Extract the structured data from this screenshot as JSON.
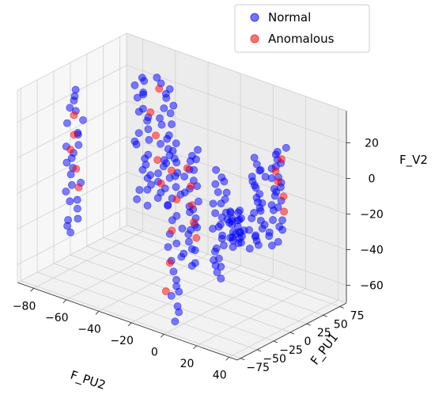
{
  "chart_data": {
    "type": "scatter",
    "projection": "3d",
    "axes": {
      "x": {
        "label": "F_PU2",
        "range": [
          -90,
          45
        ],
        "ticks": [
          -80,
          -60,
          -40,
          -20,
          0,
          20,
          40
        ]
      },
      "y": {
        "label": "F_PU1",
        "range": [
          -80,
          85
        ],
        "ticks": [
          -75,
          -50,
          -25,
          0,
          25,
          50,
          75
        ]
      },
      "z": {
        "label": "F_V2",
        "range": [
          -70,
          38
        ],
        "ticks": [
          -60,
          -40,
          -20,
          0,
          20
        ]
      }
    },
    "grid": true,
    "legend": {
      "placement": "top-right"
    },
    "series": [
      {
        "name": "Normal",
        "color": "#0000ff",
        "clusters": [
          {
            "x": 0,
            "y": -65,
            "z": [
              -65,
              35
            ]
          },
          {
            "x": 30,
            "y": -70,
            "z": [
              -30,
              28
            ]
          },
          {
            "x": 35,
            "y": -25,
            "z": [
              -22,
              28
            ]
          },
          {
            "x": 35,
            "y": 5,
            "z": [
              -25,
              30
            ]
          },
          {
            "x": -20,
            "y": 10,
            "z": [
              -55,
              10
            ]
          },
          {
            "x": -60,
            "y": 70,
            "z": [
              -45,
              25
            ]
          },
          {
            "x": -62,
            "y": 40,
            "z": [
              -40,
              32
            ]
          },
          {
            "x": -85,
            "y": -5,
            "z": [
              -55,
              25
            ]
          },
          {
            "x": -5,
            "y": 40,
            "z": [
              -45,
              -25
            ]
          }
        ]
      },
      {
        "name": "Anomalous",
        "color": "#ff0000",
        "clusters": [
          {
            "x": -20,
            "y": 10,
            "z": [
              -40,
              0
            ]
          },
          {
            "x": 35,
            "y": 5,
            "z": [
              -5,
              25
            ]
          },
          {
            "x": 0,
            "y": -65,
            "z": [
              -50,
              20
            ]
          },
          {
            "x": -60,
            "y": 60,
            "z": [
              -30,
              20
            ]
          },
          {
            "x": -85,
            "y": -5,
            "z": [
              -30,
              10
            ]
          }
        ]
      }
    ]
  }
}
